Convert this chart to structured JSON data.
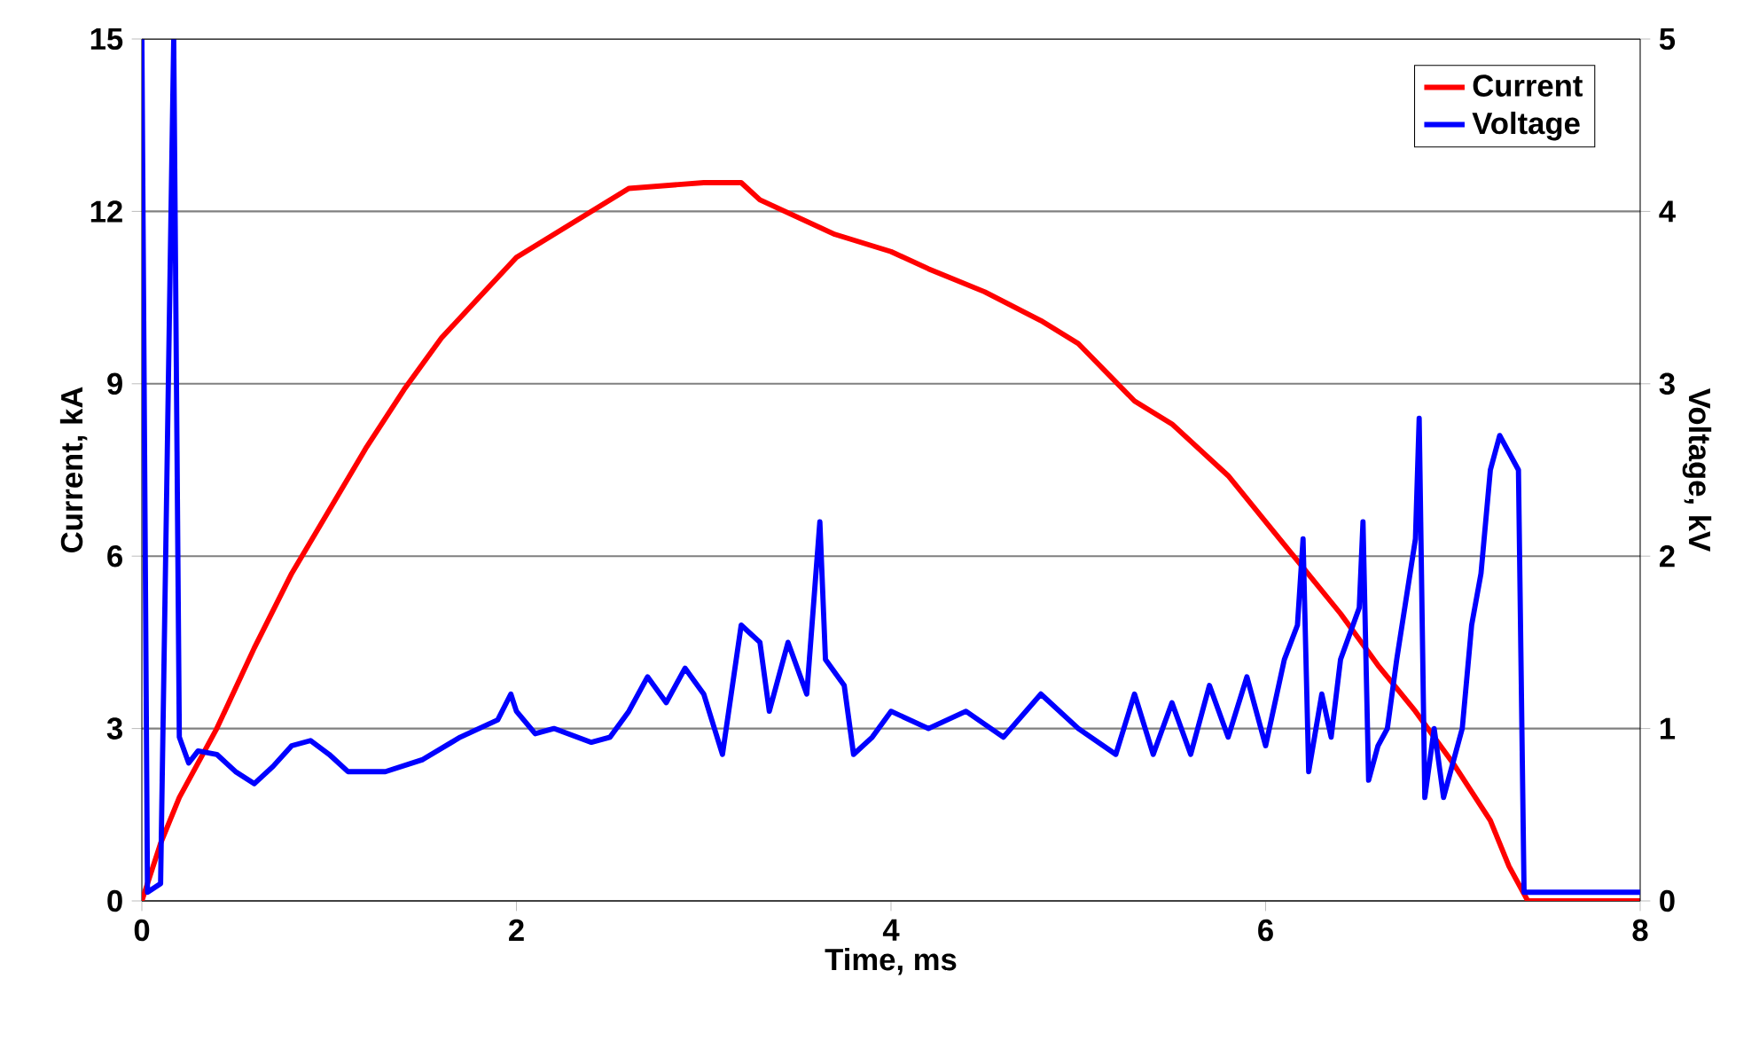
{
  "chart_data": {
    "type": "line",
    "xlabel": "Time, ms",
    "ylabel": "Current, kA",
    "y2label": "Voltage, kV",
    "xlim": [
      0,
      8
    ],
    "xticks": [
      0,
      2,
      4,
      6,
      8
    ],
    "ylim": [
      0,
      15
    ],
    "yticks": [
      0,
      3,
      6,
      9,
      12,
      15
    ],
    "y2lim": [
      0,
      5
    ],
    "y2ticks": [
      0,
      1,
      2,
      3,
      4,
      5
    ],
    "grid": "y",
    "legend": "top right",
    "marker": "none",
    "line_style": "solid",
    "series": [
      {
        "name": "Current",
        "color": "#ff0000",
        "x": [
          0,
          0.1,
          0.2,
          0.4,
          0.6,
          0.8,
          1.0,
          1.2,
          1.4,
          1.6,
          1.8,
          2.0,
          2.2,
          2.4,
          2.6,
          3.0,
          3.2,
          3.3,
          3.5,
          3.7,
          4.0,
          4.2,
          4.5,
          4.8,
          5.0,
          5.3,
          5.5,
          5.8,
          6.0,
          6.2,
          6.4,
          6.6,
          6.8,
          7.0,
          7.2,
          7.3,
          7.4,
          8.0
        ],
        "values": [
          0,
          1.0,
          1.8,
          3.0,
          4.4,
          5.7,
          6.8,
          7.9,
          8.9,
          9.8,
          10.5,
          11.2,
          11.6,
          12.0,
          12.4,
          12.5,
          12.5,
          12.2,
          11.9,
          11.6,
          11.3,
          11.0,
          10.6,
          10.1,
          9.7,
          8.7,
          8.3,
          7.4,
          6.6,
          5.8,
          5.0,
          4.1,
          3.3,
          2.4,
          1.4,
          0.6,
          0,
          0
        ]
      },
      {
        "name": "Voltage",
        "color": "#0000ff",
        "axis": "y2",
        "x": [
          0,
          0.03,
          0.1,
          0.17,
          0.2,
          0.25,
          0.3,
          0.4,
          0.5,
          0.6,
          0.7,
          0.8,
          0.9,
          1.0,
          1.1,
          1.3,
          1.5,
          1.7,
          1.8,
          1.9,
          1.97,
          2.0,
          2.1,
          2.2,
          2.4,
          2.5,
          2.6,
          2.7,
          2.8,
          2.9,
          3.0,
          3.1,
          3.2,
          3.3,
          3.35,
          3.45,
          3.55,
          3.62,
          3.65,
          3.75,
          3.8,
          3.9,
          4.0,
          4.2,
          4.4,
          4.6,
          4.8,
          5.0,
          5.2,
          5.3,
          5.4,
          5.5,
          5.6,
          5.7,
          5.8,
          5.9,
          6.0,
          6.1,
          6.17,
          6.2,
          6.23,
          6.3,
          6.35,
          6.4,
          6.5,
          6.52,
          6.55,
          6.6,
          6.65,
          6.7,
          6.8,
          6.82,
          6.85,
          6.9,
          6.95,
          7.05,
          7.1,
          7.15,
          7.2,
          7.25,
          7.35,
          7.38,
          7.5,
          8.0
        ],
        "values": [
          5,
          0.05,
          0.1,
          5,
          0.95,
          0.8,
          0.87,
          0.85,
          0.75,
          0.68,
          0.78,
          0.9,
          0.93,
          0.85,
          0.75,
          0.75,
          0.82,
          0.95,
          1.0,
          1.05,
          1.2,
          1.1,
          0.97,
          1.0,
          0.92,
          0.95,
          1.1,
          1.3,
          1.15,
          1.35,
          1.2,
          0.85,
          1.6,
          1.5,
          1.1,
          1.5,
          1.2,
          2.2,
          1.4,
          1.25,
          0.85,
          0.95,
          1.1,
          1.0,
          1.1,
          0.95,
          1.2,
          1.0,
          0.85,
          1.2,
          0.85,
          1.15,
          0.85,
          1.25,
          0.95,
          1.3,
          0.9,
          1.4,
          1.6,
          2.1,
          0.75,
          1.2,
          0.95,
          1.4,
          1.7,
          2.2,
          0.7,
          0.9,
          1.0,
          1.4,
          2.1,
          2.8,
          0.6,
          1.0,
          0.6,
          1.0,
          1.6,
          1.9,
          2.5,
          2.7,
          2.5,
          0.05,
          0.05,
          0.05
        ]
      }
    ]
  }
}
